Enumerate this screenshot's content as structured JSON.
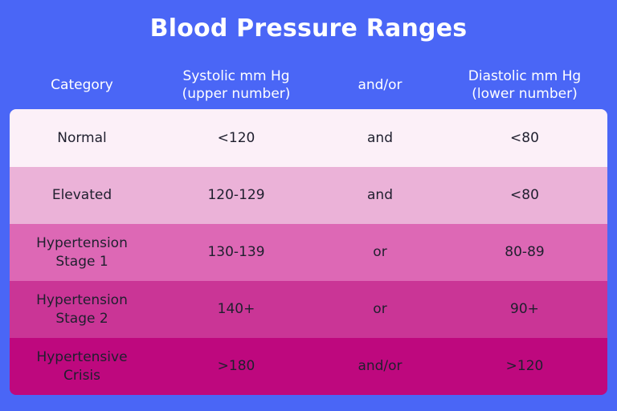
{
  "title": "Blood Pressure Ranges",
  "headers": {
    "category": "Category",
    "systolic": "Systolic mm Hg\n(upper number)",
    "andor": "and/or",
    "diastolic": "Diastolic mm Hg\n(lower number)"
  },
  "colors": {
    "background": "#4a66f6",
    "row_normal": "#fcf0f8",
    "row_elevated": "#ebb2d8",
    "row_stage1": "#dd68b5",
    "row_stage2": "#ca3596",
    "row_crisis": "#be087e"
  },
  "rows": [
    {
      "category": "Normal",
      "systolic": "<120",
      "andor": "and",
      "diastolic": "<80"
    },
    {
      "category": "Elevated",
      "systolic": "120-129",
      "andor": "and",
      "diastolic": "<80"
    },
    {
      "category": "Hypertension\nStage 1",
      "systolic": "130-139",
      "andor": "or",
      "diastolic": "80-89"
    },
    {
      "category": "Hypertension\nStage 2",
      "systolic": "140+",
      "andor": "or",
      "diastolic": "90+"
    },
    {
      "category": "Hypertensive\nCrisis",
      "systolic": ">180",
      "andor": "and/or",
      "diastolic": ">120"
    }
  ]
}
